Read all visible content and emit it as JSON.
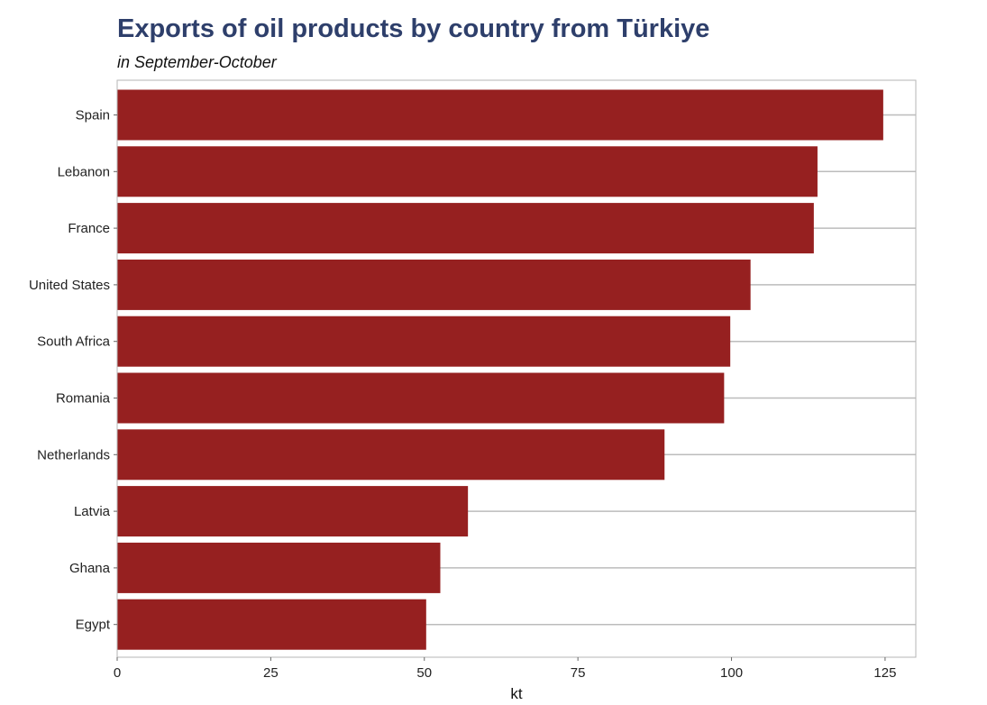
{
  "chart_data": {
    "type": "bar",
    "orientation": "horizontal",
    "title": "Exports of oil products by country from Türkiye",
    "subtitle": "in September-October",
    "xlabel": "kt",
    "ylabel": "",
    "xlim": [
      0,
      130
    ],
    "xticks": [
      0,
      25,
      50,
      75,
      100,
      125
    ],
    "grid": "horizontal lines at category centers",
    "bar_color": "#962020",
    "categories": [
      "Spain",
      "Lebanon",
      "France",
      "United States",
      "South Africa",
      "Romania",
      "Netherlands",
      "Latvia",
      "Ghana",
      "Egypt"
    ],
    "values": [
      124.7,
      114.0,
      113.4,
      103.1,
      99.8,
      98.8,
      89.1,
      57.1,
      52.6,
      50.3
    ]
  }
}
